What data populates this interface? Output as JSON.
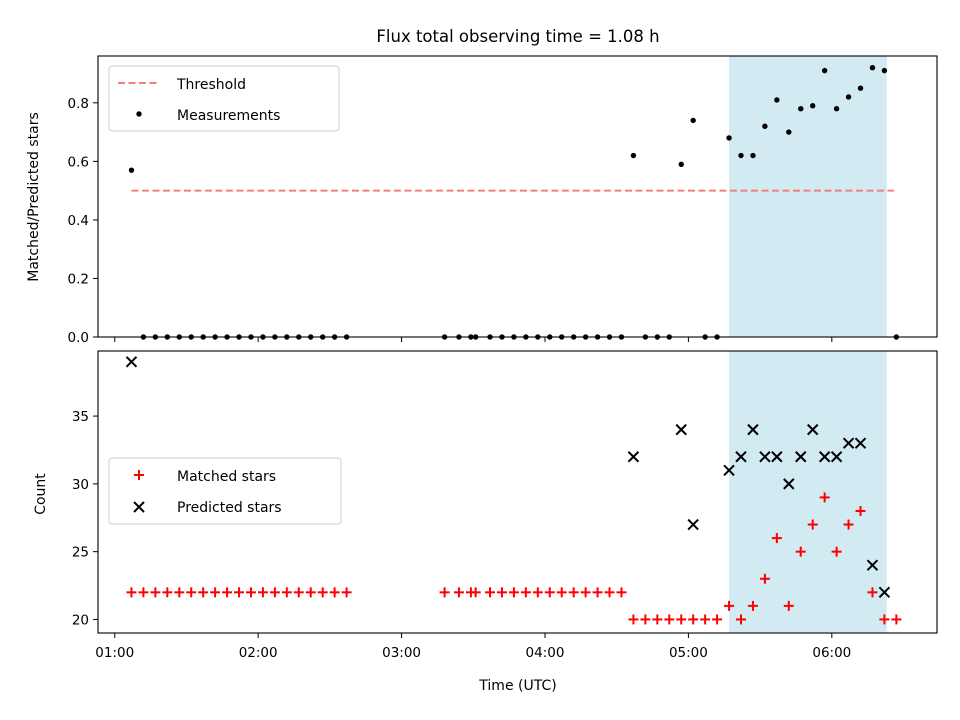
{
  "colors": {
    "threshold": "#f08080",
    "measurement": "#000000",
    "matched": "#ff0000",
    "predicted": "#000000",
    "highlight": "#add8e6"
  },
  "chart_data": [
    {
      "type": "scatter",
      "title": "Flux total observing time = 1.08 h",
      "xlabel": "",
      "ylabel": "Matched/Predicted stars",
      "xlim": [
        "00:53",
        "06:44"
      ],
      "ylim": [
        0,
        0.96
      ],
      "yticks": [
        0.0,
        0.2,
        0.4,
        0.6,
        0.8
      ],
      "ytick_labels": [
        "0.0",
        "0.2",
        "0.4",
        "0.6",
        "0.8"
      ],
      "highlight_span": [
        "05:17",
        "06:23"
      ],
      "legend": {
        "position": "top-left",
        "entries": [
          "Threshold",
          "Measurements"
        ]
      },
      "series": [
        {
          "name": "Threshold",
          "style": "dashed-line",
          "x": [
            "01:07",
            "06:26"
          ],
          "y": [
            0.5,
            0.5
          ]
        },
        {
          "name": "Measurements",
          "style": "dot",
          "points": [
            [
              "01:07",
              0.57
            ],
            [
              "01:12",
              0.0
            ],
            [
              "01:17",
              0.0
            ],
            [
              "01:22",
              0.0
            ],
            [
              "01:27",
              0.0
            ],
            [
              "01:32",
              0.0
            ],
            [
              "01:37",
              0.0
            ],
            [
              "01:42",
              0.0
            ],
            [
              "01:47",
              0.0
            ],
            [
              "01:52",
              0.0
            ],
            [
              "01:57",
              0.0
            ],
            [
              "02:02",
              0.0
            ],
            [
              "02:07",
              0.0
            ],
            [
              "02:12",
              0.0
            ],
            [
              "02:17",
              0.0
            ],
            [
              "02:22",
              0.0
            ],
            [
              "02:27",
              0.0
            ],
            [
              "02:32",
              0.0
            ],
            [
              "02:37",
              0.0
            ],
            [
              "03:18",
              0.0
            ],
            [
              "03:24",
              0.0
            ],
            [
              "03:29",
              0.0
            ],
            [
              "03:31",
              0.0
            ],
            [
              "03:37",
              0.0
            ],
            [
              "03:42",
              0.0
            ],
            [
              "03:47",
              0.0
            ],
            [
              "03:52",
              0.0
            ],
            [
              "03:57",
              0.0
            ],
            [
              "04:02",
              0.0
            ],
            [
              "04:07",
              0.0
            ],
            [
              "04:12",
              0.0
            ],
            [
              "04:17",
              0.0
            ],
            [
              "04:22",
              0.0
            ],
            [
              "04:27",
              0.0
            ],
            [
              "04:32",
              0.0
            ],
            [
              "04:37",
              0.62
            ],
            [
              "04:42",
              0.0
            ],
            [
              "04:47",
              0.0
            ],
            [
              "04:52",
              0.0
            ],
            [
              "04:57",
              0.59
            ],
            [
              "05:02",
              0.74
            ],
            [
              "05:07",
              0.0
            ],
            [
              "05:12",
              0.0
            ],
            [
              "05:17",
              0.68
            ],
            [
              "05:22",
              0.62
            ],
            [
              "05:27",
              0.62
            ],
            [
              "05:32",
              0.72
            ],
            [
              "05:37",
              0.81
            ],
            [
              "05:42",
              0.7
            ],
            [
              "05:47",
              0.78
            ],
            [
              "05:52",
              0.79
            ],
            [
              "05:57",
              0.91
            ],
            [
              "06:02",
              0.78
            ],
            [
              "06:07",
              0.82
            ],
            [
              "06:12",
              0.85
            ],
            [
              "06:17",
              0.92
            ],
            [
              "06:22",
              0.91
            ],
            [
              "06:27",
              0.0
            ]
          ]
        }
      ]
    },
    {
      "type": "scatter",
      "title": "",
      "xlabel": "Time (UTC)",
      "ylabel": "Count",
      "xlim": [
        "00:53",
        "06:44"
      ],
      "ylim": [
        19.0,
        39.8
      ],
      "xticks": [
        "01:00",
        "02:00",
        "03:00",
        "04:00",
        "05:00",
        "06:00"
      ],
      "xtick_labels": [
        "01:00",
        "02:00",
        "03:00",
        "04:00",
        "05:00",
        "06:00"
      ],
      "yticks": [
        20,
        25,
        30,
        35
      ],
      "ytick_labels": [
        "20",
        "25",
        "30",
        "35"
      ],
      "highlight_span": [
        "05:17",
        "06:23"
      ],
      "legend": {
        "position": "center-left",
        "entries": [
          "Matched stars",
          "Predicted stars"
        ]
      },
      "series": [
        {
          "name": "Matched stars",
          "marker": "+",
          "points": [
            [
              "01:07",
              22
            ],
            [
              "01:12",
              22
            ],
            [
              "01:17",
              22
            ],
            [
              "01:22",
              22
            ],
            [
              "01:27",
              22
            ],
            [
              "01:32",
              22
            ],
            [
              "01:37",
              22
            ],
            [
              "01:42",
              22
            ],
            [
              "01:47",
              22
            ],
            [
              "01:52",
              22
            ],
            [
              "01:57",
              22
            ],
            [
              "02:02",
              22
            ],
            [
              "02:07",
              22
            ],
            [
              "02:12",
              22
            ],
            [
              "02:17",
              22
            ],
            [
              "02:22",
              22
            ],
            [
              "02:27",
              22
            ],
            [
              "02:32",
              22
            ],
            [
              "02:37",
              22
            ],
            [
              "03:18",
              22
            ],
            [
              "03:24",
              22
            ],
            [
              "03:29",
              22
            ],
            [
              "03:31",
              22
            ],
            [
              "03:37",
              22
            ],
            [
              "03:42",
              22
            ],
            [
              "03:47",
              22
            ],
            [
              "03:52",
              22
            ],
            [
              "03:57",
              22
            ],
            [
              "04:02",
              22
            ],
            [
              "04:07",
              22
            ],
            [
              "04:12",
              22
            ],
            [
              "04:17",
              22
            ],
            [
              "04:22",
              22
            ],
            [
              "04:27",
              22
            ],
            [
              "04:32",
              22
            ],
            [
              "04:37",
              20
            ],
            [
              "04:42",
              20
            ],
            [
              "04:47",
              20
            ],
            [
              "04:52",
              20
            ],
            [
              "04:57",
              20
            ],
            [
              "05:02",
              20
            ],
            [
              "05:07",
              20
            ],
            [
              "05:12",
              20
            ],
            [
              "05:17",
              21
            ],
            [
              "05:22",
              20
            ],
            [
              "05:27",
              21
            ],
            [
              "05:32",
              23
            ],
            [
              "05:37",
              26
            ],
            [
              "05:42",
              21
            ],
            [
              "05:47",
              25
            ],
            [
              "05:52",
              27
            ],
            [
              "05:57",
              29
            ],
            [
              "06:02",
              25
            ],
            [
              "06:07",
              27
            ],
            [
              "06:12",
              28
            ],
            [
              "06:17",
              22
            ],
            [
              "06:22",
              20
            ],
            [
              "06:27",
              20
            ]
          ]
        },
        {
          "name": "Predicted stars",
          "marker": "x",
          "points": [
            [
              "01:07",
              39
            ],
            [
              "04:37",
              32
            ],
            [
              "04:57",
              34
            ],
            [
              "05:02",
              27
            ],
            [
              "05:17",
              31
            ],
            [
              "05:22",
              32
            ],
            [
              "05:27",
              34
            ],
            [
              "05:32",
              32
            ],
            [
              "05:37",
              32
            ],
            [
              "05:42",
              30
            ],
            [
              "05:47",
              32
            ],
            [
              "05:52",
              34
            ],
            [
              "05:57",
              32
            ],
            [
              "06:02",
              32
            ],
            [
              "06:07",
              33
            ],
            [
              "06:12",
              33
            ],
            [
              "06:17",
              24
            ],
            [
              "06:22",
              22
            ]
          ]
        }
      ]
    }
  ]
}
